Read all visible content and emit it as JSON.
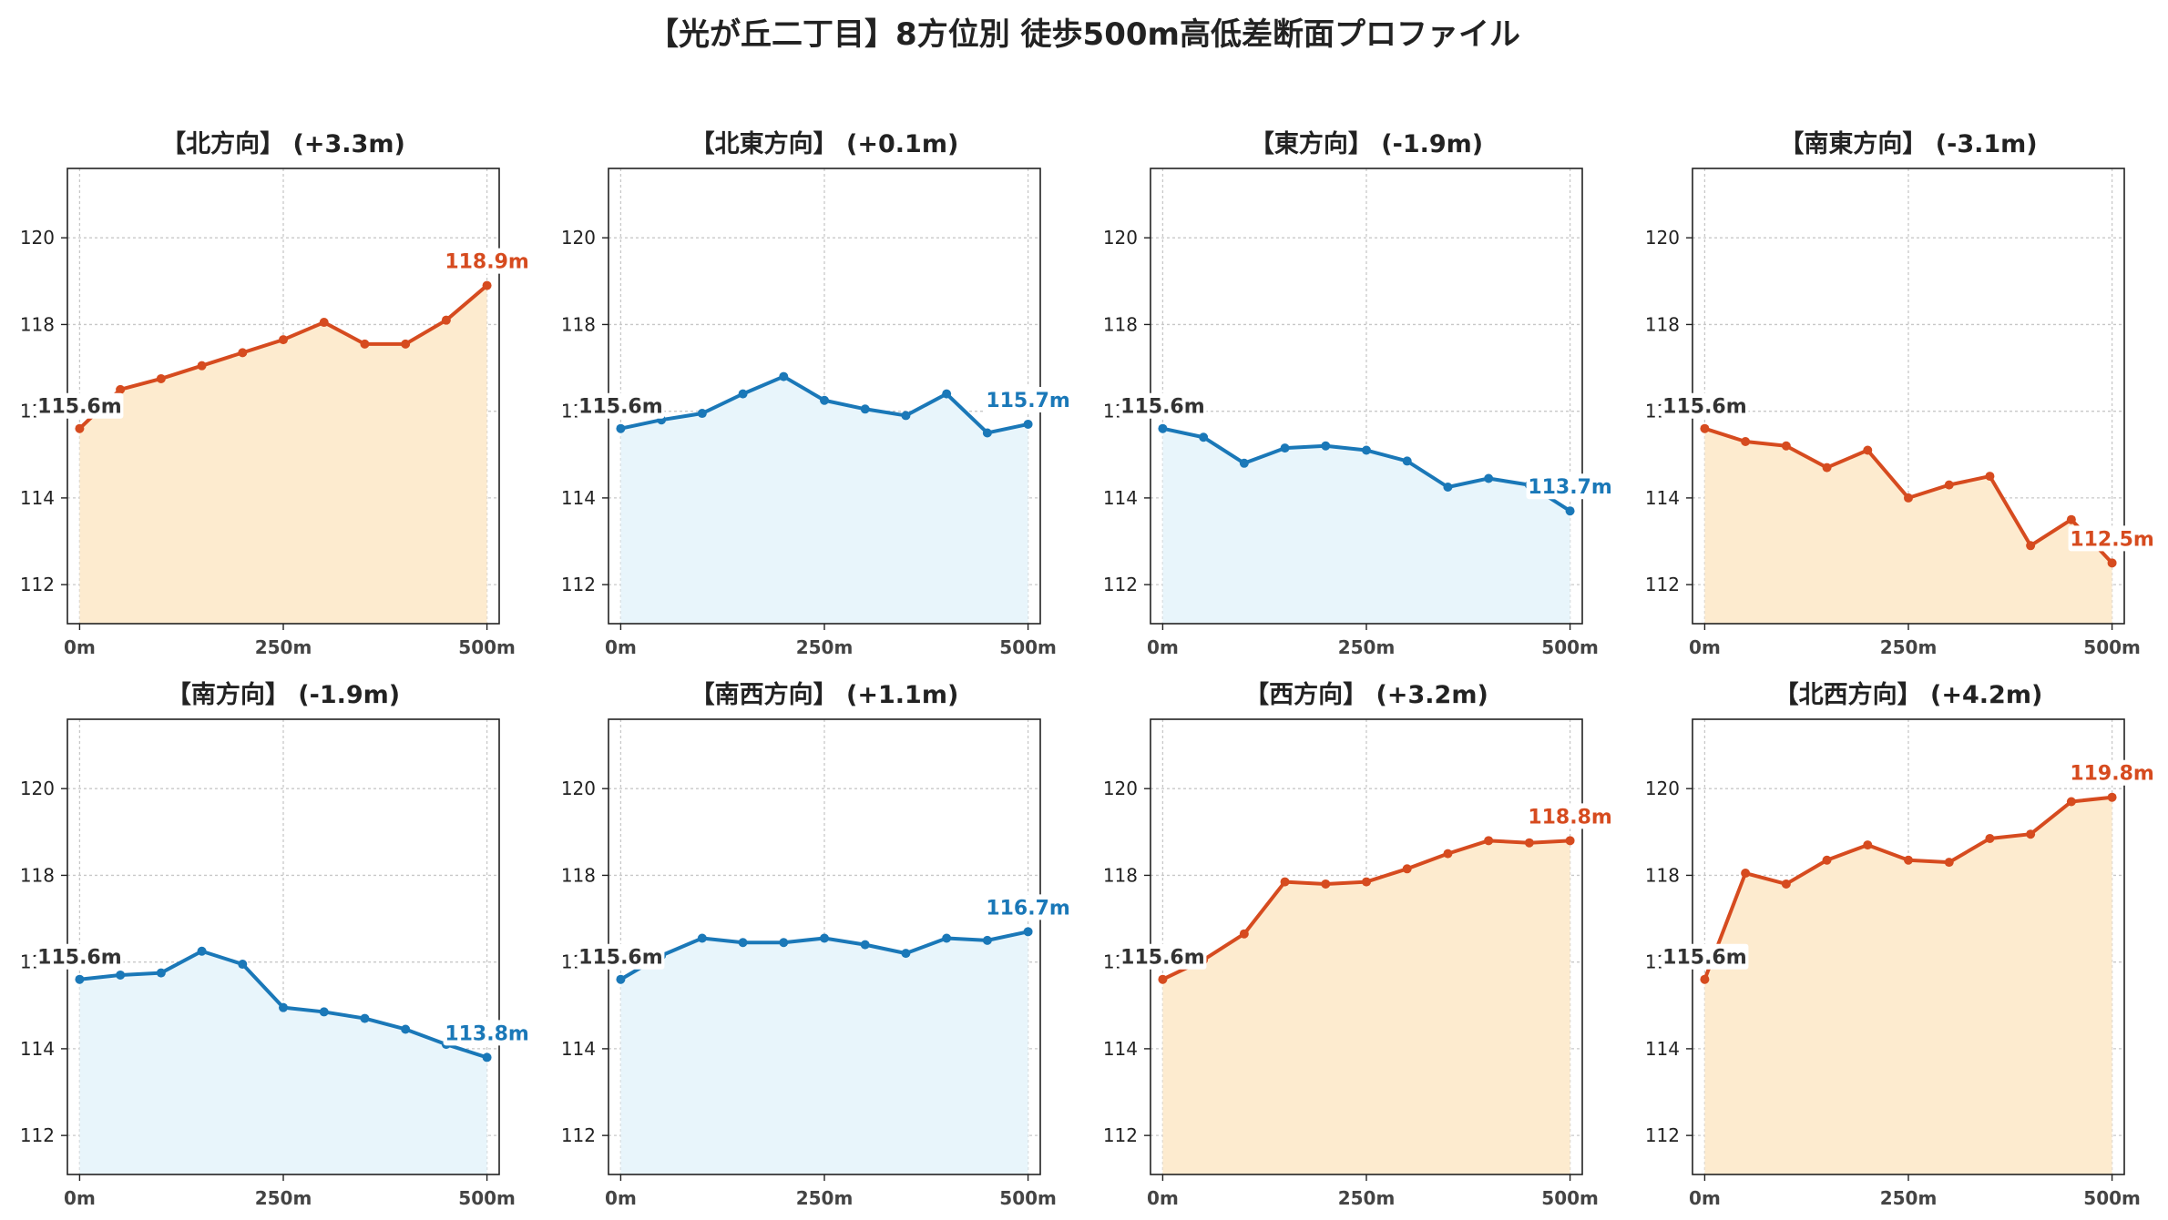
{
  "title": "【光が丘二丁目】8方位別 徒歩500m高低差断面プロファイル",
  "colors": {
    "up": "#d64b1f",
    "up_fill": "#fdebcf",
    "down": "#1a78b8",
    "down_fill": "#e8f5fb",
    "start_label": "#333333"
  },
  "chart_data": [
    {
      "type": "line",
      "title": "【北方向】 (+3.3m)",
      "trend": "up",
      "x": [
        0,
        50,
        100,
        150,
        200,
        250,
        300,
        350,
        400,
        450,
        500
      ],
      "y": [
        115.6,
        116.5,
        116.75,
        117.05,
        117.35,
        117.65,
        118.05,
        117.55,
        117.55,
        118.1,
        118.9
      ],
      "start_label": "115.6m",
      "end_label": "118.9m",
      "xticks": [
        0,
        250,
        500
      ],
      "xtick_labels": [
        "0m",
        "250m",
        "500m"
      ],
      "yticks": [
        112,
        114,
        116,
        118,
        120
      ],
      "xlim": [
        -15,
        515
      ],
      "ylim": [
        111.1,
        121.6
      ],
      "grid": true
    },
    {
      "type": "line",
      "title": "【北東方向】 (+0.1m)",
      "trend": "down",
      "x": [
        0,
        50,
        100,
        150,
        200,
        250,
        300,
        350,
        400,
        450,
        500
      ],
      "y": [
        115.6,
        115.8,
        115.95,
        116.4,
        116.8,
        116.25,
        116.05,
        115.9,
        116.4,
        115.5,
        115.7
      ],
      "start_label": "115.6m",
      "end_label": "115.7m",
      "xticks": [
        0,
        250,
        500
      ],
      "xtick_labels": [
        "0m",
        "250m",
        "500m"
      ],
      "yticks": [
        112,
        114,
        116,
        118,
        120
      ],
      "xlim": [
        -15,
        515
      ],
      "ylim": [
        111.1,
        121.6
      ],
      "grid": true
    },
    {
      "type": "line",
      "title": "【東方向】 (-1.9m)",
      "trend": "down",
      "x": [
        0,
        50,
        100,
        150,
        200,
        250,
        300,
        350,
        400,
        450,
        500
      ],
      "y": [
        115.6,
        115.4,
        114.8,
        115.15,
        115.2,
        115.1,
        114.85,
        114.25,
        114.45,
        114.3,
        113.7
      ],
      "start_label": "115.6m",
      "end_label": "113.7m",
      "xticks": [
        0,
        250,
        500
      ],
      "xtick_labels": [
        "0m",
        "250m",
        "500m"
      ],
      "yticks": [
        112,
        114,
        116,
        118,
        120
      ],
      "xlim": [
        -15,
        515
      ],
      "ylim": [
        111.1,
        121.6
      ],
      "grid": true
    },
    {
      "type": "line",
      "title": "【南東方向】 (-3.1m)",
      "trend": "up",
      "x": [
        0,
        50,
        100,
        150,
        200,
        250,
        300,
        350,
        400,
        450,
        500
      ],
      "y": [
        115.6,
        115.3,
        115.2,
        114.7,
        115.1,
        114.0,
        114.3,
        114.5,
        112.9,
        113.5,
        112.5
      ],
      "start_label": "115.6m",
      "end_label": "112.5m",
      "xticks": [
        0,
        250,
        500
      ],
      "xtick_labels": [
        "0m",
        "250m",
        "500m"
      ],
      "yticks": [
        112,
        114,
        116,
        118,
        120
      ],
      "xlim": [
        -15,
        515
      ],
      "ylim": [
        111.1,
        121.6
      ],
      "grid": true
    },
    {
      "type": "line",
      "title": "【南方向】 (-1.9m)",
      "trend": "down",
      "x": [
        0,
        50,
        100,
        150,
        200,
        250,
        300,
        350,
        400,
        450,
        500
      ],
      "y": [
        115.6,
        115.7,
        115.75,
        116.25,
        115.95,
        114.95,
        114.85,
        114.7,
        114.45,
        114.1,
        113.8
      ],
      "start_label": "115.6m",
      "end_label": "113.8m",
      "xticks": [
        0,
        250,
        500
      ],
      "xtick_labels": [
        "0m",
        "250m",
        "500m"
      ],
      "yticks": [
        112,
        114,
        116,
        118,
        120
      ],
      "xlim": [
        -15,
        515
      ],
      "ylim": [
        111.1,
        121.6
      ],
      "grid": true
    },
    {
      "type": "line",
      "title": "【南西方向】 (+1.1m)",
      "trend": "down",
      "x": [
        0,
        50,
        100,
        150,
        200,
        250,
        300,
        350,
        400,
        450,
        500
      ],
      "y": [
        115.6,
        116.15,
        116.55,
        116.45,
        116.45,
        116.55,
        116.4,
        116.2,
        116.55,
        116.5,
        116.7
      ],
      "start_label": "115.6m",
      "end_label": "116.7m",
      "xticks": [
        0,
        250,
        500
      ],
      "xtick_labels": [
        "0m",
        "250m",
        "500m"
      ],
      "yticks": [
        112,
        114,
        116,
        118,
        120
      ],
      "xlim": [
        -15,
        515
      ],
      "ylim": [
        111.1,
        121.6
      ],
      "grid": true
    },
    {
      "type": "line",
      "title": "【西方向】 (+3.2m)",
      "trend": "up",
      "x": [
        0,
        50,
        100,
        150,
        200,
        250,
        300,
        350,
        400,
        450,
        500
      ],
      "y": [
        115.6,
        116.05,
        116.65,
        117.85,
        117.8,
        117.85,
        118.15,
        118.5,
        118.8,
        118.75,
        118.8
      ],
      "start_label": "115.6m",
      "end_label": "118.8m",
      "xticks": [
        0,
        250,
        500
      ],
      "xtick_labels": [
        "0m",
        "250m",
        "500m"
      ],
      "yticks": [
        112,
        114,
        116,
        118,
        120
      ],
      "xlim": [
        -15,
        515
      ],
      "ylim": [
        111.1,
        121.6
      ],
      "grid": true
    },
    {
      "type": "line",
      "title": "【北西方向】 (+4.2m)",
      "trend": "up",
      "x": [
        0,
        50,
        100,
        150,
        200,
        250,
        300,
        350,
        400,
        450,
        500
      ],
      "y": [
        115.6,
        118.05,
        117.8,
        118.35,
        118.7,
        118.35,
        118.3,
        118.85,
        118.95,
        119.7,
        119.8
      ],
      "start_label": "115.6m",
      "end_label": "119.8m",
      "xticks": [
        0,
        250,
        500
      ],
      "xtick_labels": [
        "0m",
        "250m",
        "500m"
      ],
      "yticks": [
        112,
        114,
        116,
        118,
        120
      ],
      "xlim": [
        -15,
        515
      ],
      "ylim": [
        111.1,
        121.6
      ],
      "grid": true
    }
  ]
}
